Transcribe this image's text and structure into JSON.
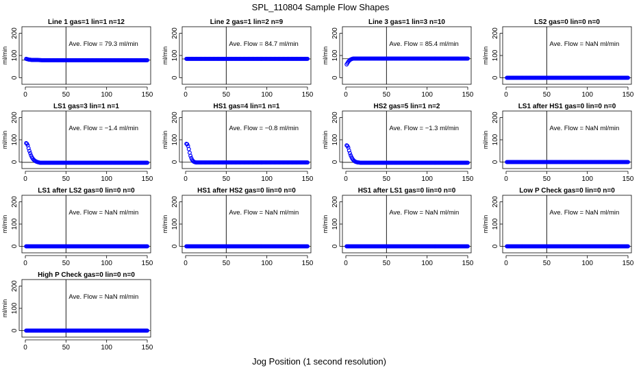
{
  "chart_data": {
    "type": "scatter",
    "title": "SPL_110804  Sample Flow Shapes",
    "xlabel": "Jog Position (1 second resolution)",
    "panel_ylabel": "ml/min",
    "xlim": [
      0,
      150
    ],
    "ylim": [
      -20,
      220
    ],
    "x_ticks": [
      0,
      50,
      100,
      150
    ],
    "y_ticks": [
      0,
      100,
      200
    ],
    "vline_x": 50,
    "annotation_prefix": "Ave. Flow =",
    "annotation_unit": "ml/min",
    "point_color": "#0000ff",
    "panels": [
      {
        "title": "Line 1 gas=1 lin=1 n=12",
        "ave_flow": "79.3",
        "hline": 79.3,
        "series": [
          {
            "x": [
              1,
              2,
              3,
              4,
              5,
              6,
              8,
              10,
              15,
              20,
              30,
              40,
              50,
              60,
              70,
              80,
              90,
              100,
              110,
              120,
              130,
              140,
              150
            ],
            "y": [
              85,
              84,
              83,
              82,
              81,
              81,
              80,
              80,
              80,
              79,
              79,
              79,
              79,
              79,
              79,
              79,
              79,
              79,
              79,
              79,
              79,
              79,
              79
            ]
          }
        ]
      },
      {
        "title": "Line 2 gas=1 lin=2 n=9",
        "ave_flow": "84.7",
        "hline": 84.7,
        "series": [
          {
            "x": [
              1,
              2,
              3,
              5,
              10,
              20,
              30,
              40,
              50,
              60,
              70,
              80,
              90,
              100,
              110,
              120,
              130,
              140,
              150
            ],
            "y": [
              85,
              85,
              85,
              85,
              85,
              85,
              85,
              85,
              85,
              85,
              85,
              85,
              85,
              85,
              85,
              85,
              85,
              85,
              85
            ]
          }
        ]
      },
      {
        "title": "Line 3 gas=1 lin=3 n=10",
        "ave_flow": "85.4",
        "hline": 85.4,
        "series": [
          {
            "x": [
              1,
              2,
              3,
              4,
              5,
              6,
              7,
              8,
              9,
              10,
              12,
              15,
              20,
              30,
              40,
              50,
              60,
              70,
              80,
              90,
              100,
              110,
              120,
              130,
              140,
              150
            ],
            "y": [
              60,
              66,
              72,
              76,
              80,
              82,
              84,
              85,
              86,
              86,
              86,
              86,
              86,
              86,
              86,
              86,
              86,
              86,
              86,
              86,
              86,
              86,
              86,
              86,
              86,
              86
            ]
          }
        ]
      },
      {
        "title": "LS2 gas=0 lin=0 n=0",
        "ave_flow": "NaN",
        "hline": 0,
        "series": [
          {
            "x": [
              1,
              10,
              20,
              30,
              40,
              50,
              60,
              70,
              80,
              90,
              100,
              110,
              120,
              130,
              140,
              150
            ],
            "y": [
              0,
              0,
              0,
              0,
              0,
              0,
              0,
              0,
              0,
              0,
              0,
              0,
              0,
              0,
              0,
              0
            ]
          }
        ]
      },
      {
        "title": "LS1 gas=3 lin=1 n=1",
        "ave_flow": "−1.4",
        "hline": -1.4,
        "series": [
          {
            "x": [
              1,
              2,
              3,
              4,
              5,
              6,
              7,
              8,
              9,
              10,
              11,
              12,
              13,
              14,
              15,
              16,
              17,
              18,
              20,
              25,
              30,
              40,
              50,
              60,
              70,
              80,
              90,
              100,
              110,
              120,
              130,
              140,
              150
            ],
            "y": [
              85,
              82,
              75,
              62,
              50,
              40,
              30,
              22,
              16,
              11,
              8,
              5,
              3,
              1,
              0,
              -1,
              -2,
              -3,
              -3,
              -3,
              -3,
              -3,
              -3,
              -3,
              -3,
              -3,
              -3,
              -3,
              -3,
              -3,
              -3,
              -3,
              -3
            ]
          }
        ]
      },
      {
        "title": "HS1 gas=4 lin=1 n=1",
        "ave_flow": "−0.8",
        "hline": -0.8,
        "series": [
          {
            "x": [
              1,
              2,
              3,
              4,
              5,
              6,
              7,
              8,
              9,
              10,
              11,
              12,
              13,
              14,
              16,
              18,
              20,
              30,
              40,
              50,
              60,
              70,
              80,
              90,
              100,
              110,
              120,
              130,
              140,
              150
            ],
            "y": [
              82,
              80,
              72,
              58,
              42,
              28,
              18,
              10,
              5,
              2,
              0,
              -1,
              -2,
              -2,
              -2,
              -2,
              -2,
              -2,
              -2,
              -2,
              -2,
              -2,
              -2,
              -2,
              -2,
              -2,
              -2,
              -2,
              -2,
              -2
            ]
          }
        ]
      },
      {
        "title": "HS2 gas=5 lin=1 n=2",
        "ave_flow": "−1.3",
        "hline": -1.3,
        "series": [
          {
            "x": [
              1,
              2,
              3,
              4,
              5,
              6,
              7,
              8,
              9,
              10,
              11,
              12,
              13,
              14,
              15,
              16,
              18,
              20,
              25,
              30,
              40,
              50,
              60,
              70,
              80,
              90,
              100,
              110,
              120,
              130,
              140,
              150
            ],
            "y": [
              75,
              72,
              65,
              52,
              40,
              30,
              22,
              15,
              10,
              6,
              3,
              1,
              0,
              -1,
              -2,
              -2,
              -3,
              -3,
              -3,
              -3,
              -3,
              -3,
              -3,
              -3,
              -3,
              -3,
              -3,
              -3,
              -3,
              -3,
              -3,
              -3
            ]
          }
        ]
      },
      {
        "title": "LS1 after HS1 gas=0 lin=0 n=0",
        "ave_flow": "NaN",
        "hline": 0,
        "series": [
          {
            "x": [
              1,
              10,
              20,
              30,
              40,
              50,
              60,
              70,
              80,
              90,
              100,
              110,
              120,
              130,
              140,
              150
            ],
            "y": [
              0,
              0,
              0,
              0,
              0,
              0,
              0,
              0,
              0,
              0,
              0,
              0,
              0,
              0,
              0,
              0
            ]
          }
        ]
      },
      {
        "title": "LS1 after LS2 gas=0 lin=0 n=0",
        "ave_flow": "NaN",
        "hline": 0,
        "series": [
          {
            "x": [
              1,
              10,
              20,
              30,
              40,
              50,
              60,
              70,
              80,
              90,
              100,
              110,
              120,
              130,
              140,
              150
            ],
            "y": [
              0,
              0,
              0,
              0,
              0,
              0,
              0,
              0,
              0,
              0,
              0,
              0,
              0,
              0,
              0,
              0
            ]
          }
        ]
      },
      {
        "title": "HS1 after HS2 gas=0 lin=0 n=0",
        "ave_flow": "NaN",
        "hline": 0,
        "series": [
          {
            "x": [
              1,
              10,
              20,
              30,
              40,
              50,
              60,
              70,
              80,
              90,
              100,
              110,
              120,
              130,
              140,
              150
            ],
            "y": [
              0,
              0,
              0,
              0,
              0,
              0,
              0,
              0,
              0,
              0,
              0,
              0,
              0,
              0,
              0,
              0
            ]
          }
        ]
      },
      {
        "title": "HS1 after LS1 gas=0 lin=0 n=0",
        "ave_flow": "NaN",
        "hline": 0,
        "series": [
          {
            "x": [
              1,
              10,
              20,
              30,
              40,
              50,
              60,
              70,
              80,
              90,
              100,
              110,
              120,
              130,
              140,
              150
            ],
            "y": [
              0,
              0,
              0,
              0,
              0,
              0,
              0,
              0,
              0,
              0,
              0,
              0,
              0,
              0,
              0,
              0
            ]
          }
        ]
      },
      {
        "title": "Low P Check gas=0 lin=0 n=0",
        "ave_flow": "NaN",
        "hline": 0,
        "series": [
          {
            "x": [
              1,
              10,
              20,
              30,
              40,
              50,
              60,
              70,
              80,
              90,
              100,
              110,
              120,
              130,
              140,
              150
            ],
            "y": [
              0,
              0,
              0,
              0,
              0,
              0,
              0,
              0,
              0,
              0,
              0,
              0,
              0,
              0,
              0,
              0
            ]
          }
        ]
      },
      {
        "title": "High P Check gas=0 lin=0 n=0",
        "ave_flow": "NaN",
        "hline": 0,
        "series": [
          {
            "x": [
              1,
              10,
              20,
              30,
              40,
              50,
              60,
              70,
              80,
              90,
              100,
              110,
              120,
              130,
              140,
              150
            ],
            "y": [
              0,
              0,
              0,
              0,
              0,
              0,
              0,
              0,
              0,
              0,
              0,
              0,
              0,
              0,
              0,
              0
            ]
          }
        ]
      }
    ]
  }
}
